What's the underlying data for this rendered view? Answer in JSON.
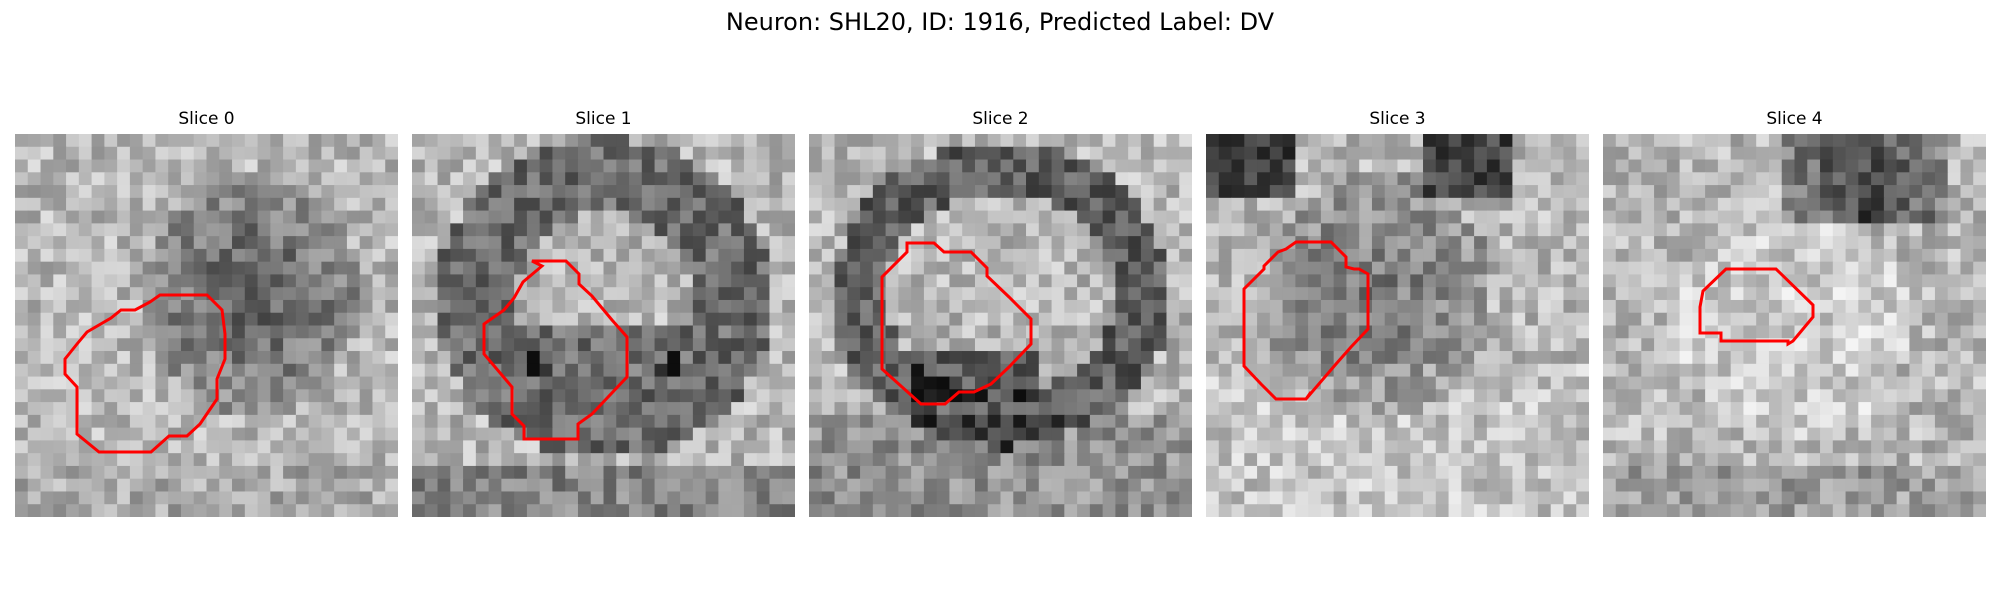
{
  "figure": {
    "title": "Neuron: SHL20, ID: 1916, Predicted Label: DV",
    "outline_color": "#ff0000",
    "colormap": "grayscale",
    "panels": [
      {
        "title": "Slice 0"
      },
      {
        "title": "Slice 1"
      },
      {
        "title": "Slice 2"
      },
      {
        "title": "Slice 3"
      },
      {
        "title": "Slice 4"
      }
    ]
  }
}
